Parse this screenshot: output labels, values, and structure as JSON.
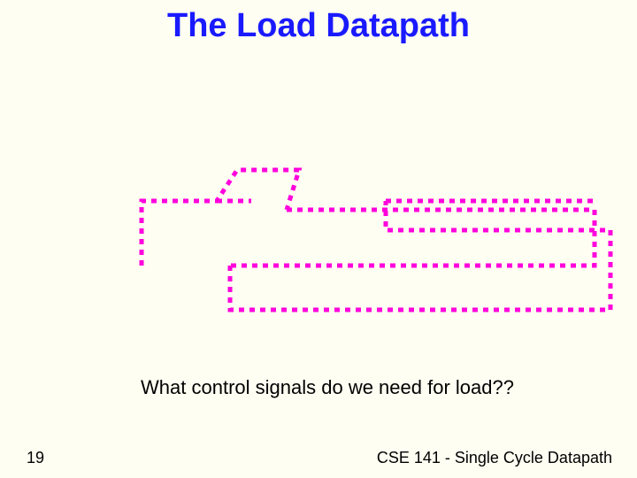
{
  "title": "The Load Datapath",
  "question": "What control signals do we need for load??",
  "slideNumber": "19",
  "footer": "CSE 141 - Single Cycle Datapath",
  "diagram": {
    "stroke": "#ff00dd",
    "strokeWidth": 5,
    "dashArray": "6,6",
    "paths": [
      "M 40 120 L 40 47 L 125 47 L 148 12 L 218 12 L 204 57",
      "M 204 57 L 552 57",
      "M 125 47 L 164 47",
      "M 552 57 L 552 120 L 140 120",
      "M 140 120 L 140 170 L 570 170 L 570 80 L 316 80 L 316 47",
      "M 316 47 L 552 47"
    ]
  }
}
